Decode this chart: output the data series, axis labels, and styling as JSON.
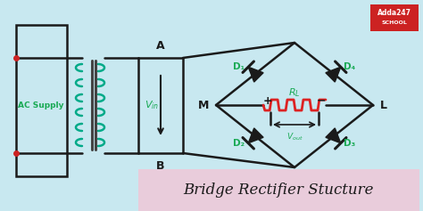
{
  "bg_color": "#c8e8f0",
  "title_text": "Bridge Rectifier Stucture",
  "title_font": "serif",
  "title_italic": true,
  "line_color": "#1a1a1a",
  "green_color": "#1aaa55",
  "red_color": "#dd2222",
  "logo_bg": "#cc2222",
  "logo_text_color": "#ffffff",
  "ac_dot_color": "#cc2222",
  "transformer_coil_color": "#00aa88",
  "vin_label": "$V_{in}$",
  "ac_label": "AC Supply",
  "node_A": "A",
  "node_B": "B",
  "node_M": "M",
  "node_L": "L",
  "d1": "D₁",
  "d2": "D₂",
  "d3": "D₃",
  "d4": "D₄",
  "rl_label": "Rₗ",
  "vout_label": "V₀ᵁᵗ"
}
